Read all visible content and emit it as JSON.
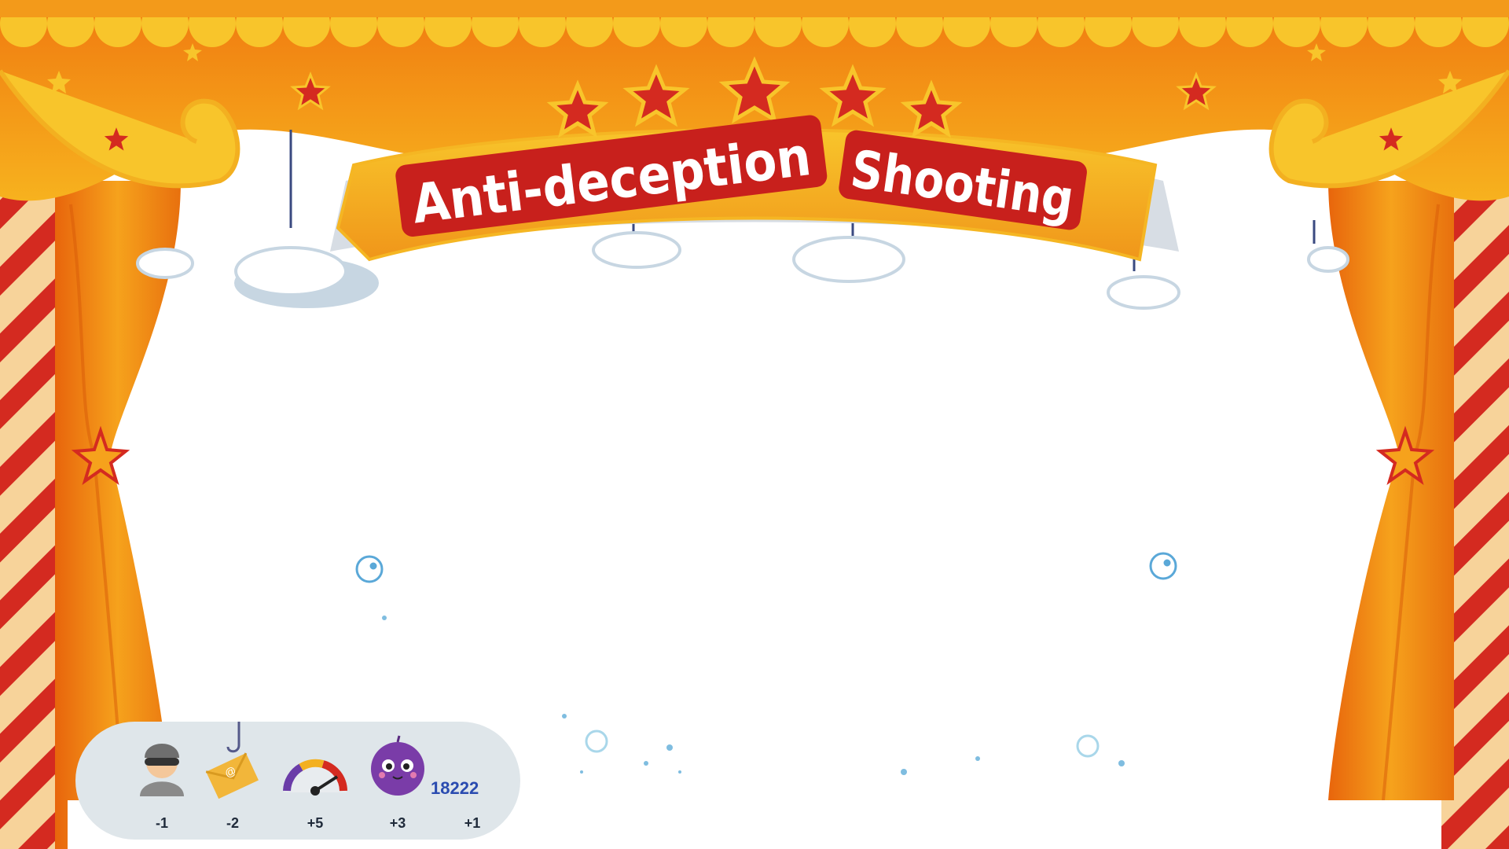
{
  "game": {
    "title_part1": "Anti-deception",
    "title_part2": "Shooting"
  },
  "score_panel": {
    "items": [
      {
        "icon": "thief-icon",
        "value": "-1"
      },
      {
        "icon": "phishing-mail-icon",
        "value": "-2"
      },
      {
        "icon": "speed-gauge-icon",
        "value": "+5"
      },
      {
        "icon": "purple-ball-icon",
        "value": "+3"
      },
      {
        "icon": "score-icon",
        "value": "+1"
      }
    ],
    "total_score": "18222"
  },
  "colors": {
    "curtain_orange": "#f07a10",
    "curtain_light": "#f6a71c",
    "valance_yellow": "#f8c52b",
    "stripe_red": "#d42a20",
    "banner_red": "#c8201c",
    "star_red": "#d42a20",
    "total_score_blue": "#2a4bb0"
  }
}
